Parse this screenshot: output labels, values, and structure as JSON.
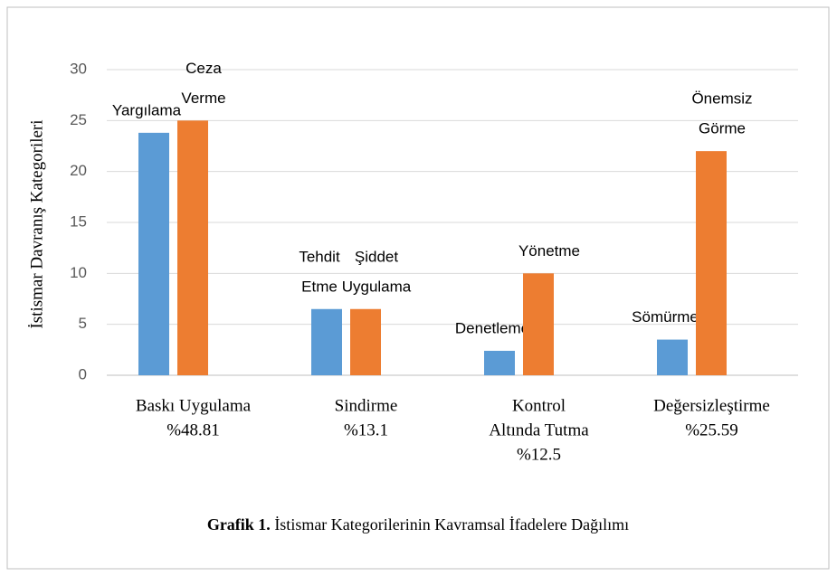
{
  "chart_data": {
    "type": "bar",
    "ylabel": "İstismar Davranış Kategorileri",
    "caption_label": "Grafik 1.",
    "caption": "İstismar Kategorilerinin Kavramsal İfadelere Dağılımı",
    "categories": [
      [
        "Baskı Uygulama",
        "%48.81"
      ],
      [
        "Sindirme",
        "%13.1"
      ],
      [
        "Kontrol",
        "Altında Tutma",
        "%12.5"
      ],
      [
        "Değersizleştirme",
        "%25.59"
      ]
    ],
    "series": [
      {
        "color": "#5b9bd5",
        "values": [
          23.8,
          6.5,
          2.4,
          3.5
        ],
        "bar_labels": [
          [
            "Yargılama"
          ],
          [
            "Tehdit",
            "Etme"
          ],
          [
            "Denetleme"
          ],
          [
            "Sömürme"
          ]
        ]
      },
      {
        "color": "#ed7d31",
        "values": [
          25,
          6.5,
          10,
          22
        ],
        "bar_labels": [
          [
            "Ceza",
            "Verme"
          ],
          [
            "Şiddet",
            "Uygulama"
          ],
          [
            "Yönetme"
          ],
          [
            "Önemsiz",
            "Görme"
          ]
        ]
      }
    ],
    "ylim": [
      0,
      30
    ],
    "yticks": [
      0,
      5,
      10,
      15,
      20,
      25,
      30
    ],
    "grid": true
  }
}
